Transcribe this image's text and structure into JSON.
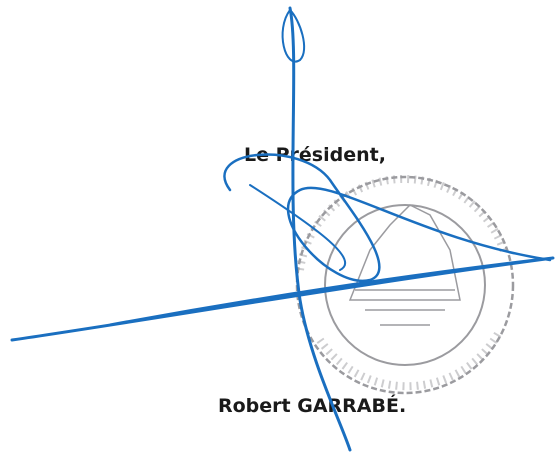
{
  "signature_block": {
    "title": "Le Président,",
    "name": "Robert GARRABÉ."
  }
}
